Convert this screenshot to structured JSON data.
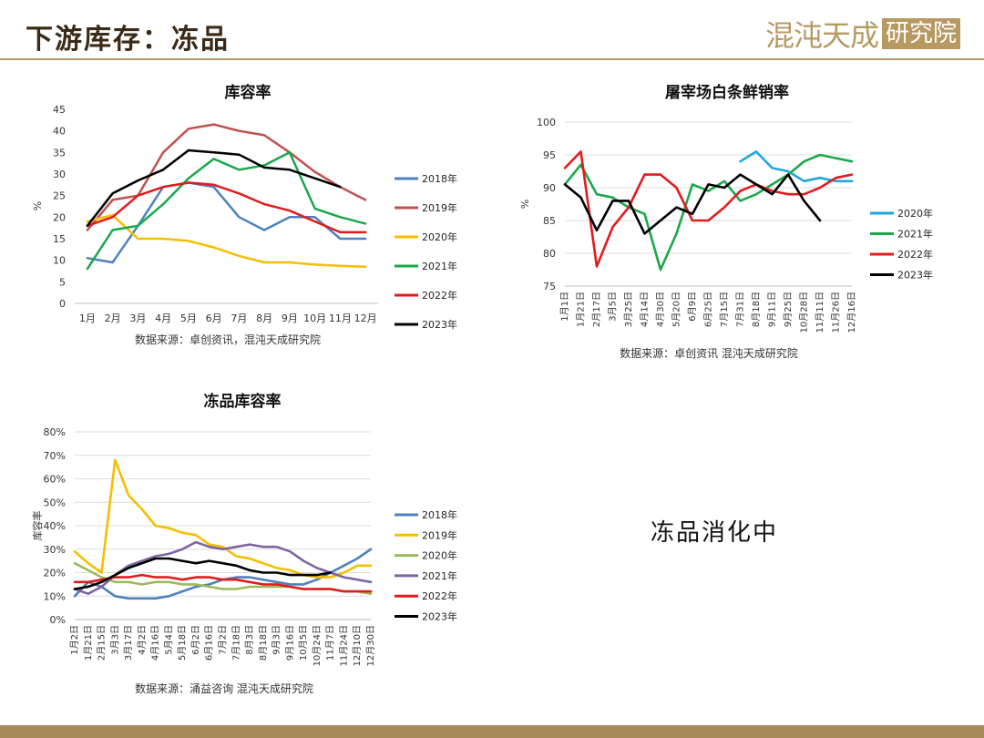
{
  "header": {
    "title": "下游库存：冻品",
    "logo_text": "混沌天成",
    "logo_box": "研究院"
  },
  "note": "冻品消化中",
  "charts": [
    {
      "type": "line",
      "title": "库容率",
      "ylabel": "%",
      "source": "数据来源：卓创资讯，混沌天成研究院",
      "ylim": [
        0,
        45
      ],
      "yticks": [
        "0",
        "5",
        "10",
        "15",
        "20",
        "25",
        "30",
        "35",
        "40",
        "45"
      ],
      "categories": [
        "1月",
        "2月",
        "3月",
        "4月",
        "5月",
        "6月",
        "7月",
        "8月",
        "9月",
        "10月",
        "11月",
        "12月"
      ],
      "series": [
        {
          "name": "2018年",
          "color": "#4e81bd",
          "values": [
            10.5,
            9.5,
            18,
            27,
            28,
            27,
            20,
            17,
            20,
            20,
            15,
            15
          ]
        },
        {
          "name": "2019年",
          "color": "#c0504d",
          "values": [
            17,
            24,
            25,
            35,
            40.5,
            41.5,
            40,
            39,
            35,
            30.5,
            27,
            24
          ]
        },
        {
          "name": "2020年",
          "color": "#f6be00",
          "values": [
            19,
            20.5,
            15,
            15,
            14.5,
            13,
            11,
            9.5,
            9.5,
            9,
            8.7,
            8.5
          ]
        },
        {
          "name": "2021年",
          "color": "#1aa84a",
          "values": [
            8,
            17,
            18,
            23,
            29,
            33.5,
            31,
            32,
            35,
            22,
            20,
            18.5
          ]
        },
        {
          "name": "2022年",
          "color": "#e31a1c",
          "values": [
            18,
            20,
            25,
            27,
            28,
            27.5,
            25.5,
            23,
            21.5,
            19,
            16.5,
            16.5
          ]
        },
        {
          "name": "2023年",
          "color": "#000000",
          "values": [
            18,
            25.5,
            28.5,
            31,
            35.5,
            35,
            34.5,
            31.5,
            31,
            29,
            27
          ]
        }
      ]
    },
    {
      "type": "line",
      "title": "屠宰场白条鲜销率",
      "ylabel": "%",
      "source": "数据来源：卓创资讯 混沌天成研究院",
      "ylim": [
        75,
        100
      ],
      "yticks": [
        "75",
        "80",
        "85",
        "90",
        "95",
        "100"
      ],
      "categories": [
        "1月1日",
        "1月21日",
        "2月17日",
        "3月5日",
        "3月25日",
        "4月14日",
        "4月30日",
        "5月20日",
        "6月9日",
        "6月25日",
        "7月15日",
        "7月31日",
        "8月18日",
        "9月11日",
        "9月25日",
        "10月28日",
        "11月11日",
        "11月26日",
        "12月16日"
      ],
      "series": [
        {
          "name": "2020年",
          "color": "#1fa6db",
          "values": [
            null,
            null,
            null,
            null,
            null,
            null,
            null,
            null,
            null,
            null,
            null,
            94,
            95.5,
            93,
            92.5,
            91,
            91.5,
            91,
            91
          ]
        },
        {
          "name": "2021年",
          "color": "#1aa84a",
          "values": [
            90.5,
            93.5,
            89,
            88.5,
            87,
            86,
            77.5,
            83,
            90.5,
            89.5,
            91,
            88,
            89,
            90.5,
            92,
            94,
            95,
            94.5,
            94
          ]
        },
        {
          "name": "2022年",
          "color": "#e31a1c",
          "values": [
            93,
            95.5,
            78,
            84,
            87,
            92,
            92,
            90,
            85,
            85,
            87,
            89.5,
            90.5,
            89.5,
            89,
            89,
            90,
            91.5,
            92
          ]
        },
        {
          "name": "2023年",
          "color": "#000000",
          "values": [
            90.5,
            88.5,
            83.5,
            88,
            88,
            83,
            85,
            87,
            86,
            90.5,
            90,
            92,
            90.5,
            89,
            92,
            88,
            85,
            null,
            null
          ]
        }
      ]
    },
    {
      "type": "line",
      "title": "冻品库容率",
      "ylabel": "库容率",
      "source": "数据来源：涌益咨询 混沌天成研究院",
      "ylim": [
        0,
        80
      ],
      "yticks": [
        "0%",
        "10%",
        "20%",
        "30%",
        "40%",
        "50%",
        "60%",
        "70%",
        "80%"
      ],
      "categories": [
        "1月2日",
        "1月21日",
        "2月15日",
        "3月3日",
        "3月17日",
        "4月2日",
        "4月16日",
        "5月4日",
        "5月18日",
        "6月2日",
        "6月16日",
        "7月2日",
        "7月18日",
        "8月3日",
        "8月18日",
        "9月3日",
        "9月16日",
        "10月5日",
        "10月24日",
        "11月7日",
        "11月24日",
        "12月10日",
        "12月30日"
      ],
      "series": [
        {
          "name": "2018年",
          "color": "#4e81bd",
          "values": [
            10,
            16,
            14,
            10,
            9,
            9,
            9,
            10,
            12,
            14,
            15,
            17,
            18,
            18,
            17,
            16,
            15,
            15,
            17,
            20,
            23,
            26,
            30
          ]
        },
        {
          "name": "2019年",
          "color": "#f6be00",
          "values": [
            29,
            24,
            20,
            68,
            53,
            47,
            40,
            39,
            37,
            36,
            32,
            31,
            27,
            26,
            24,
            22,
            21,
            19,
            18,
            18,
            20,
            23,
            23
          ]
        },
        {
          "name": "2020年",
          "color": "#9bbb59",
          "values": [
            24,
            21,
            18,
            16,
            16,
            15,
            16,
            16,
            15,
            15,
            14,
            13,
            13,
            14,
            14,
            14,
            14,
            13,
            13,
            13,
            12,
            12,
            11
          ]
        },
        {
          "name": "2021年",
          "color": "#8064a2",
          "values": [
            13,
            11,
            14,
            19,
            23,
            25,
            27,
            28,
            30,
            33,
            31,
            30,
            31,
            32,
            31,
            31,
            29,
            25,
            22,
            20,
            18,
            17,
            16
          ]
        },
        {
          "name": "2022年",
          "color": "#e31a1c",
          "values": [
            16,
            16,
            17,
            18,
            18,
            19,
            18,
            18,
            17,
            18,
            18,
            17,
            17,
            16,
            15,
            15,
            14,
            13,
            13,
            13,
            12,
            12,
            12
          ]
        },
        {
          "name": "2023年",
          "color": "#000000",
          "values": [
            13,
            14,
            16,
            19,
            22,
            24,
            26,
            26,
            25,
            24,
            25,
            24,
            23,
            21,
            20,
            20,
            19,
            19,
            19,
            20,
            null,
            null,
            null
          ]
        }
      ]
    }
  ]
}
